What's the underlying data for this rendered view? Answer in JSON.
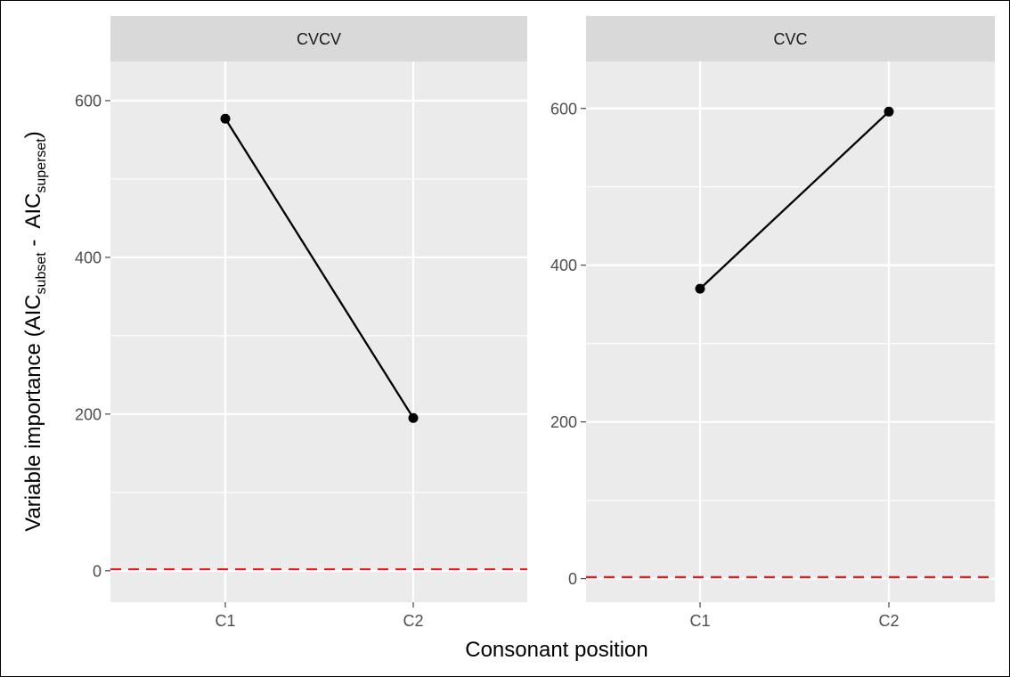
{
  "chart_data": [
    {
      "type": "line",
      "title": "CVCV",
      "categories": [
        "C1",
        "C2"
      ],
      "series": [
        {
          "values": [
            577,
            195
          ]
        }
      ],
      "ylim": [
        -40,
        650
      ],
      "y_ticks": [
        0,
        200,
        400,
        600
      ],
      "y_minor_ticks": [
        100,
        300,
        500
      ],
      "reference_line": {
        "y": 2,
        "color": "#e41a1c",
        "style": "dashed"
      },
      "grid": true
    },
    {
      "type": "line",
      "title": "CVC",
      "categories": [
        "C1",
        "C2"
      ],
      "series": [
        {
          "values": [
            370,
            596
          ]
        }
      ],
      "ylim": [
        -30,
        660
      ],
      "y_ticks": [
        0,
        200,
        400,
        600
      ],
      "y_minor_ticks": [
        100,
        300,
        500
      ],
      "reference_line": {
        "y": 2,
        "color": "#e41a1c",
        "style": "dashed"
      },
      "grid": true
    }
  ],
  "shared_axes": {
    "xlabel": "Consonant position",
    "ylabel": {
      "main": "Variable importance (AIC",
      "sub1": "subset",
      "middle": " -  AIC",
      "sub2": "superset",
      "close": ")"
    }
  },
  "colors": {
    "panel_background": "#ebebeb",
    "strip_background": "#d9d9d9",
    "line": "#000000",
    "reference": "#e41a1c"
  }
}
